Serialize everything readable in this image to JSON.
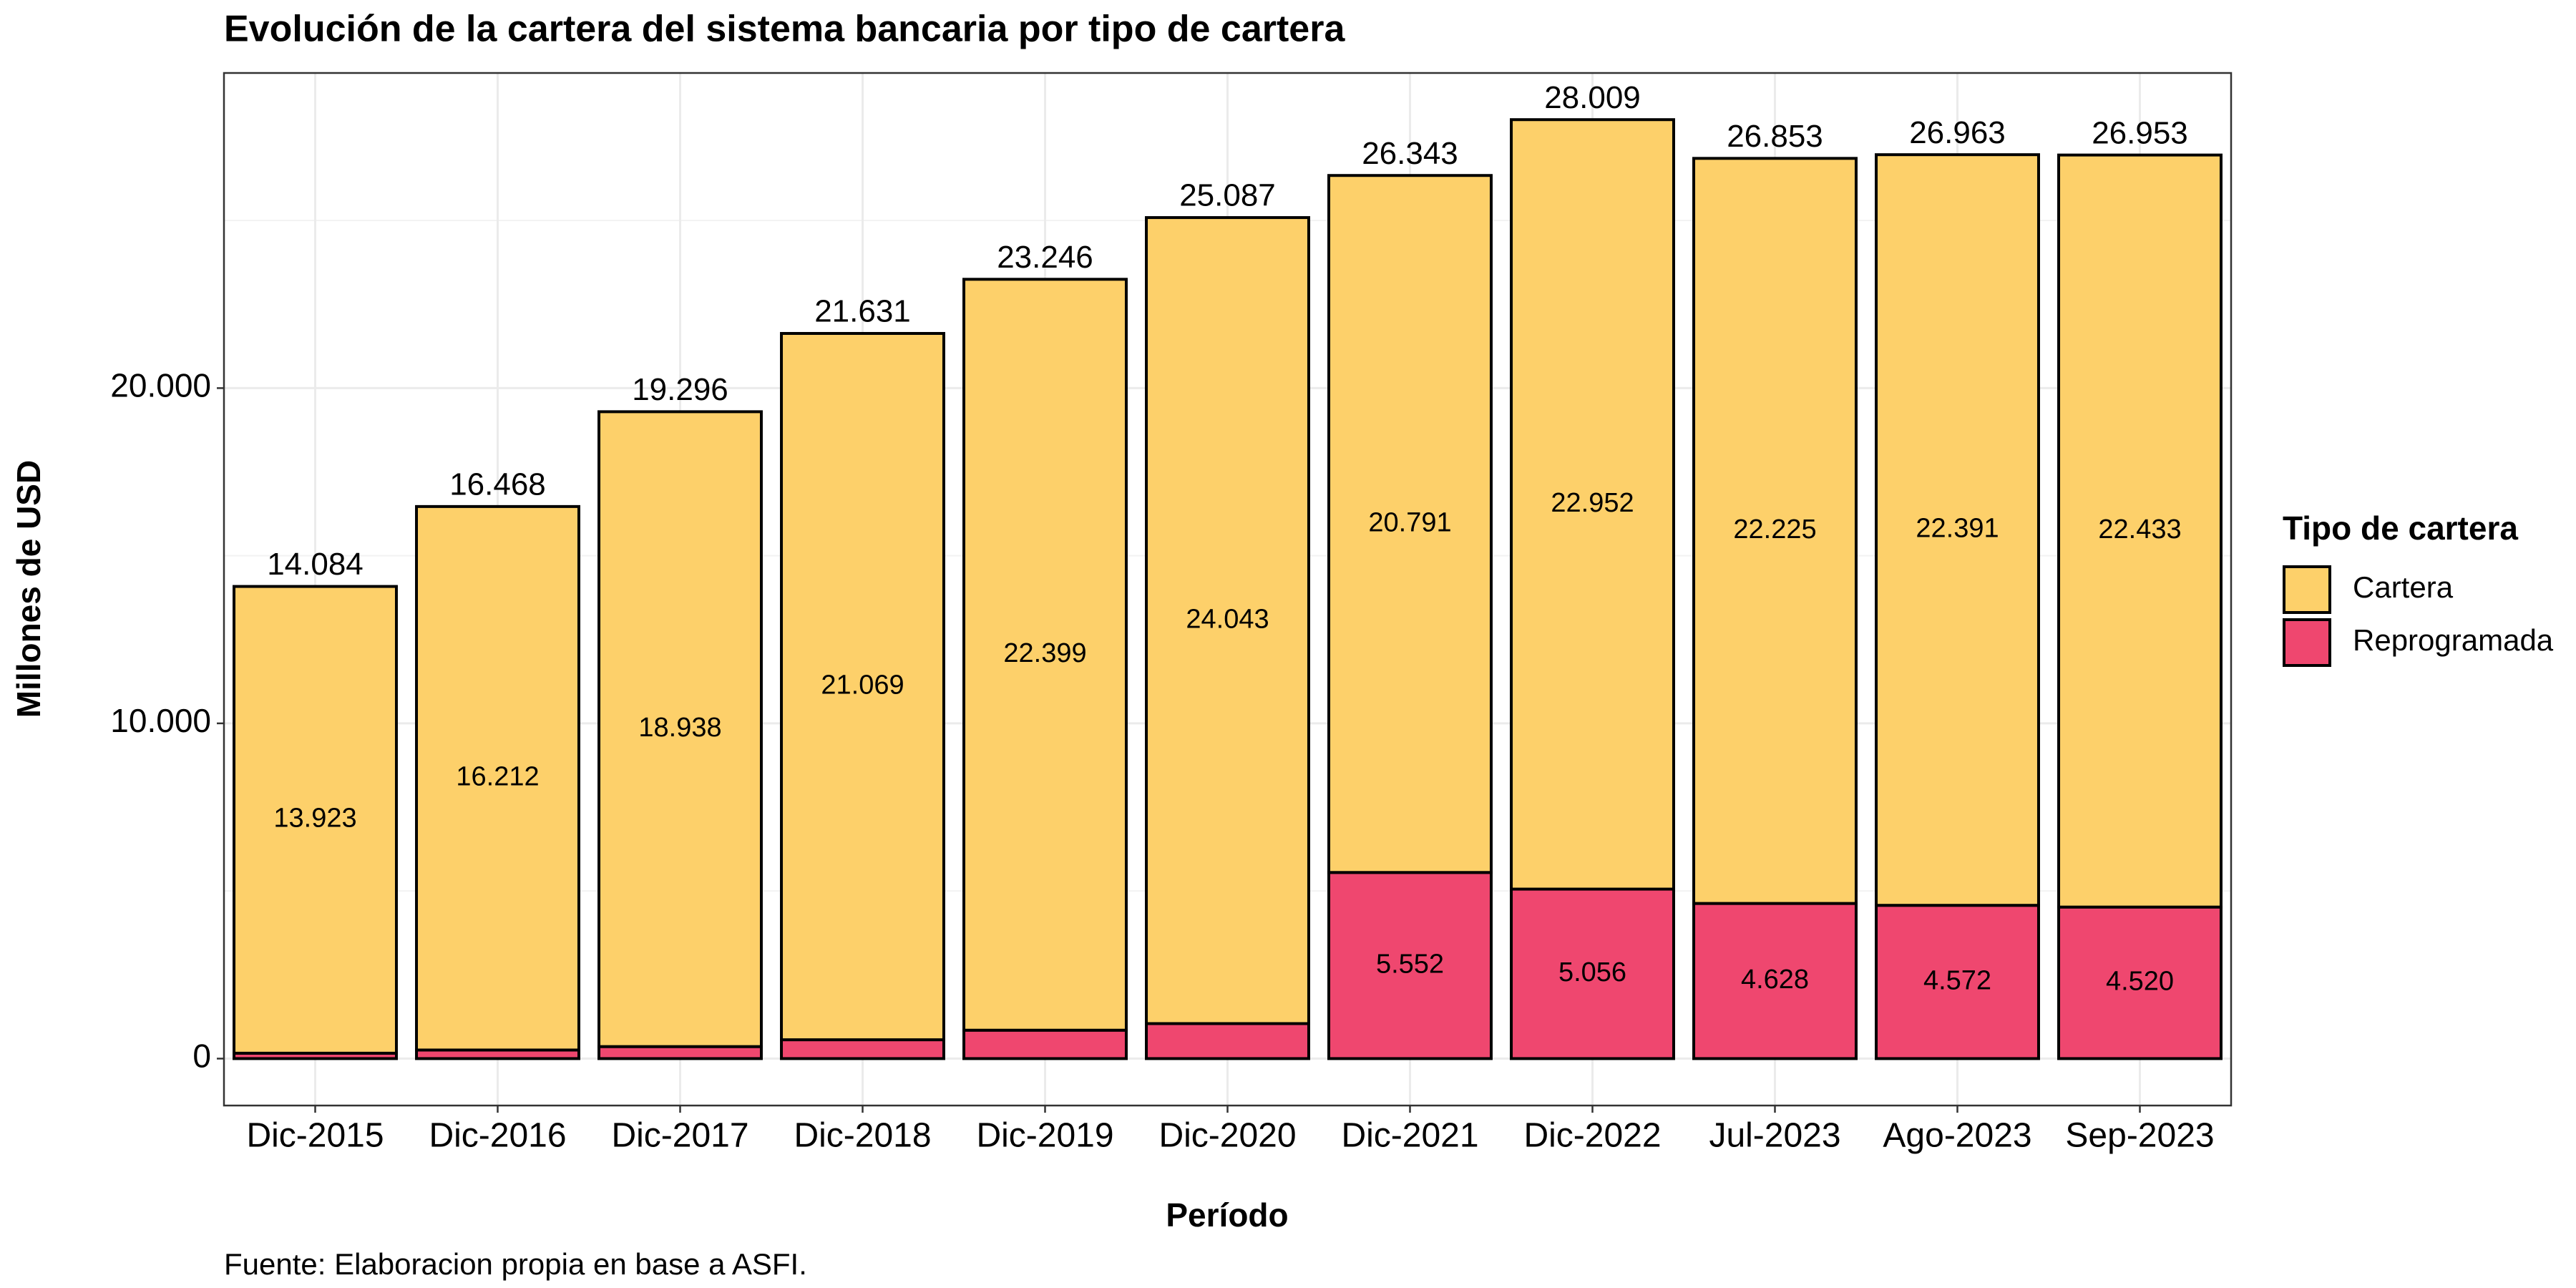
{
  "chart_data": {
    "type": "stacked_bar",
    "title": "Evolución de la cartera del sistema bancaria por tipo de cartera",
    "x_label": "Período",
    "y_label": "Millones de USD",
    "caption": "Fuente: Elaboracion propia en base a ASFI.",
    "legend_title": "Tipo de cartera",
    "legend_position": "right",
    "grid": true,
    "categories": [
      "Dic-2015",
      "Dic-2016",
      "Dic-2017",
      "Dic-2018",
      "Dic-2019",
      "Dic-2020",
      "Dic-2021",
      "Dic-2022",
      "Jul-2023",
      "Ago-2023",
      "Sep-2023"
    ],
    "series": [
      {
        "name": "Reprogramada",
        "color": "#EF476F",
        "values": [
          161,
          256,
          358,
          562,
          847,
          1044,
          5552,
          5056,
          4628,
          4572,
          4520
        ],
        "value_labels": [
          null,
          null,
          null,
          null,
          null,
          null,
          "5.552",
          "5.056",
          "4.628",
          "4.572",
          "4.520"
        ]
      },
      {
        "name": "Cartera",
        "color": "#FDD06A",
        "values": [
          13923,
          16212,
          18938,
          21069,
          22399,
          24043,
          20791,
          22952,
          22225,
          22391,
          22433
        ],
        "value_labels": [
          "13.923",
          "16.212",
          "18.938",
          "21.069",
          "22.399",
          "24.043",
          "20.791",
          "22.952",
          "22.225",
          "22.391",
          "22.433"
        ]
      }
    ],
    "totals": {
      "values": [
        14084,
        16468,
        19296,
        21631,
        23246,
        25087,
        26343,
        28009,
        26853,
        26963,
        26953
      ],
      "value_labels": [
        "14.084",
        "16.468",
        "19.296",
        "21.631",
        "23.246",
        "25.087",
        "26.343",
        "28.009",
        "26.853",
        "26.963",
        "26.953"
      ]
    },
    "ylim": [
      -1400,
      29400
    ],
    "yticks": [
      0,
      {
        "value": 10000,
        "label": "10.000"
      },
      {
        "value": 20000,
        "label": "20.000"
      }
    ],
    "yticks_minor": [
      5000,
      15000,
      25000
    ]
  }
}
